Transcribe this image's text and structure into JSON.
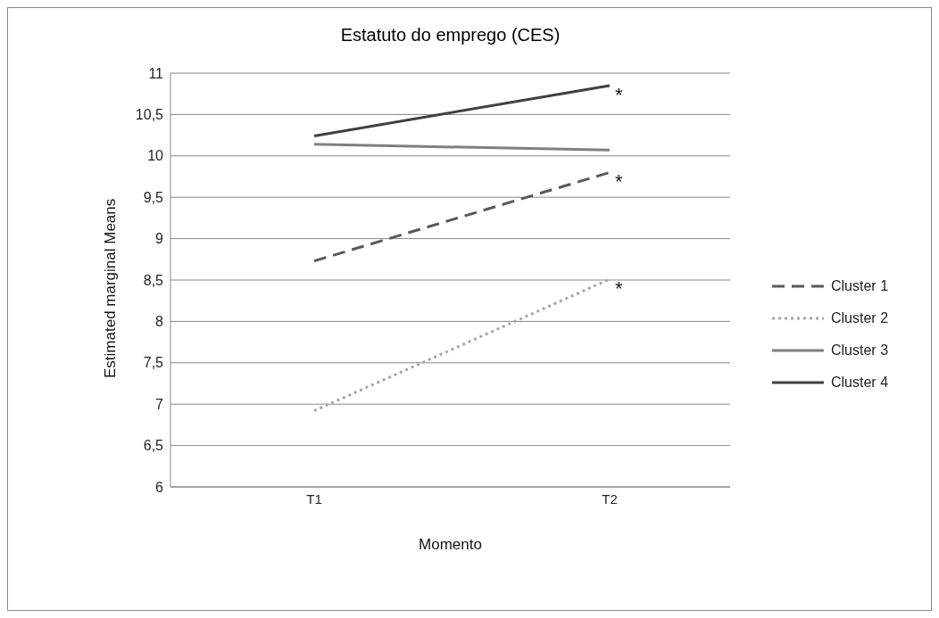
{
  "chart_data": {
    "type": "line",
    "title": "Estatuto do emprego  (CES)",
    "xlabel": "Momento",
    "ylabel": "Estimated marginal Means",
    "categories": [
      "T1",
      "T2"
    ],
    "series": [
      {
        "name": "Cluster 1",
        "color": "#595959",
        "line_style": "dashed",
        "values": [
          8.73,
          9.8
        ]
      },
      {
        "name": "Cluster 2",
        "color": "#a6a6a6",
        "line_style": "dotted",
        "values": [
          6.92,
          8.51
        ]
      },
      {
        "name": "Cluster 3",
        "color": "#7f7f7f",
        "line_style": "solid",
        "values": [
          10.14,
          10.07
        ]
      },
      {
        "name": "Cluster 4",
        "color": "#404040",
        "line_style": "solid",
        "values": [
          10.24,
          10.85
        ]
      }
    ],
    "ylim": [
      6,
      11
    ],
    "yticks": [
      {
        "value": 6,
        "label": "6"
      },
      {
        "value": 6.5,
        "label": "6,5"
      },
      {
        "value": 7,
        "label": "7"
      },
      {
        "value": 7.5,
        "label": "7,5"
      },
      {
        "value": 8,
        "label": "8"
      },
      {
        "value": 8.5,
        "label": "8,5"
      },
      {
        "value": 9,
        "label": "9"
      },
      {
        "value": 9.5,
        "label": "9,5"
      },
      {
        "value": 10,
        "label": "10"
      },
      {
        "value": 10.5,
        "label": "10,5"
      },
      {
        "value": 11,
        "label": "11"
      }
    ],
    "grid": "y",
    "legend": "right",
    "marker": "none",
    "annotations": [
      {
        "text": "*",
        "x": "T2",
        "y": 10.85
      },
      {
        "text": "*",
        "x": "T2",
        "y": 9.8
      },
      {
        "text": "*",
        "x": "T2",
        "y": 8.51
      }
    ]
  }
}
